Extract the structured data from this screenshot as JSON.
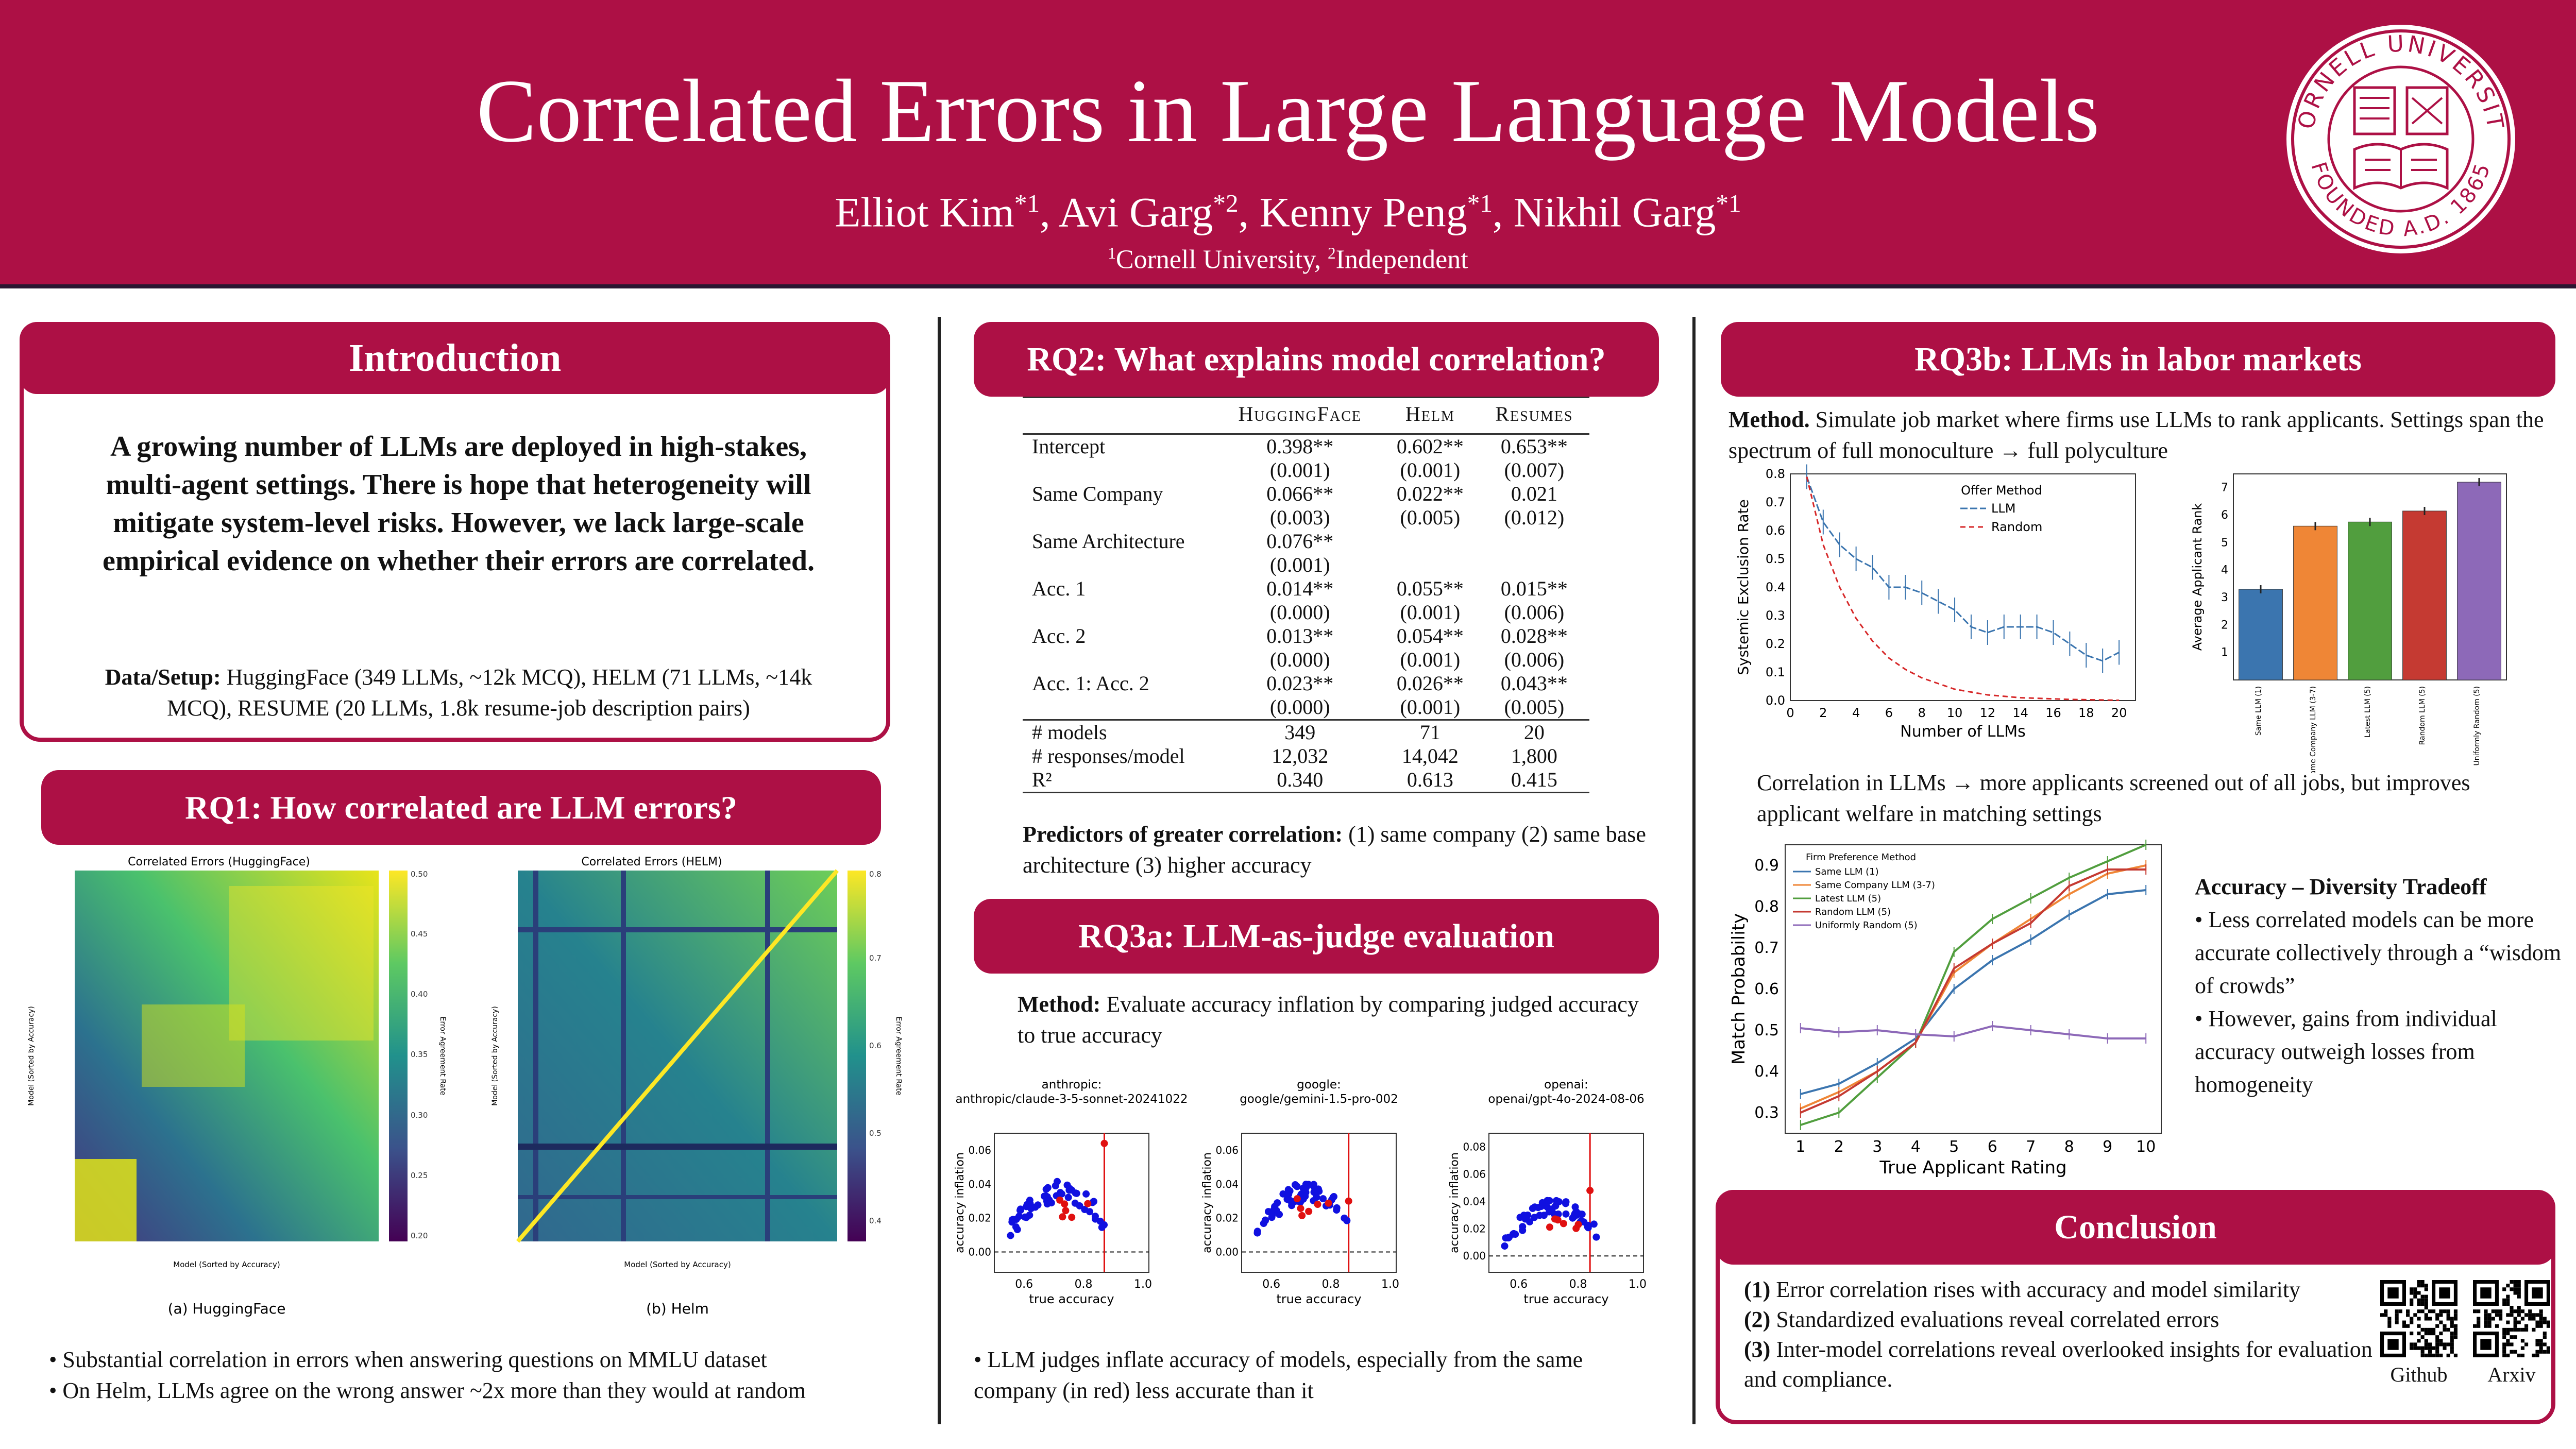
{
  "header": {
    "title": "Correlated Errors in Large Language Models",
    "authors": [
      {
        "name": "Elliot Kim",
        "sup": "*1"
      },
      {
        "name": "Avi Garg",
        "sup": "*2"
      },
      {
        "name": "Kenny Peng",
        "sup": "*1"
      },
      {
        "name": "Nikhil Garg",
        "sup": "*1"
      }
    ],
    "affiliations": [
      {
        "sup": "1",
        "name": "Cornell University"
      },
      {
        "sup": "2",
        "name": "Independent"
      }
    ],
    "seal_text_top": "CORNELL UNIVERSITY",
    "seal_text_bottom": "FOUNDED A.D. 1865"
  },
  "intro": {
    "heading": "Introduction",
    "body": "A growing number of LLMs are deployed in high-stakes, multi-agent settings. There is hope that heterogeneity will mitigate system-level risks. However, we lack large-scale empirical evidence on whether their errors are correlated.",
    "data_label": "Data/Setup:",
    "data_text": "HuggingFace (349 LLMs, ~12k MCQ), HELM (71 LLMs, ~14k MCQ), RESUME (20 LLMs, 1.8k resume-job description pairs)"
  },
  "rq1": {
    "heading": "RQ1: How correlated are LLM errors?",
    "heatmaps": [
      {
        "title": "Correlated Errors (HuggingFace)",
        "caption": "(a) HuggingFace",
        "xlabel": "Model (Sorted by Accuracy)",
        "ylabel": "Model (Sorted by Accuracy)",
        "cbar_label": "Error Agreement Rate",
        "cbar_ticks": [
          "0.50",
          "0.45",
          "0.40",
          "0.35",
          "0.30",
          "0.25",
          "0.20"
        ]
      },
      {
        "title": "Correlated Errors (HELM)",
        "caption": "(b) Helm",
        "xlabel": "Model (Sorted by Accuracy)",
        "ylabel": "Model (Sorted by Accuracy)",
        "cbar_label": "Error Agreement Rate",
        "cbar_ticks": [
          "0.8",
          "0.7",
          "0.6",
          "0.5",
          "0.4"
        ]
      }
    ],
    "bullets": [
      "Substantial correlation in errors when answering questions on MMLU dataset",
      "On Helm, LLMs agree on the wrong answer ~2x more than they would at random"
    ]
  },
  "rq2": {
    "heading": "RQ2: What explains model correlation?",
    "columns": [
      "HuggingFace",
      "Helm",
      "Resumes"
    ],
    "rows": [
      {
        "label": "Intercept",
        "vals": [
          "0.398**",
          "0.602**",
          "0.653**"
        ],
        "se": [
          "(0.001)",
          "(0.001)",
          "(0.007)"
        ]
      },
      {
        "label": "Same Company",
        "vals": [
          "0.066**",
          "0.022**",
          "0.021"
        ],
        "se": [
          "(0.003)",
          "(0.005)",
          "(0.012)"
        ]
      },
      {
        "label": "Same Architecture",
        "vals": [
          "0.076**",
          "",
          ""
        ],
        "se": [
          "(0.001)",
          "",
          ""
        ]
      },
      {
        "label": "Acc. 1",
        "vals": [
          "0.014**",
          "0.055**",
          "0.015**"
        ],
        "se": [
          "(0.000)",
          "(0.001)",
          "(0.006)"
        ]
      },
      {
        "label": "Acc. 2",
        "vals": [
          "0.013**",
          "0.054**",
          "0.028**"
        ],
        "se": [
          "(0.000)",
          "(0.001)",
          "(0.006)"
        ]
      },
      {
        "label": "Acc. 1: Acc. 2",
        "vals": [
          "0.023**",
          "0.026**",
          "0.043**"
        ],
        "se": [
          "(0.000)",
          "(0.001)",
          "(0.005)"
        ]
      }
    ],
    "stats": [
      {
        "label": "# models",
        "vals": [
          "349",
          "71",
          "20"
        ]
      },
      {
        "label": "# responses/model",
        "vals": [
          "12,032",
          "14,042",
          "1,800"
        ]
      },
      {
        "label": "R²",
        "vals": [
          "0.340",
          "0.613",
          "0.415"
        ]
      }
    ],
    "predictors_label": "Predictors of greater correlation:",
    "predictors_text": "(1) same company (2) same base architecture (3) higher accuracy"
  },
  "rq3a": {
    "heading": "RQ3a: LLM-as-judge evaluation",
    "method_label": "Method:",
    "method_text": "Evaluate accuracy inflation by comparing judged accuracy to true accuracy",
    "panels": [
      {
        "title1": "anthropic:",
        "title2": "anthropic/claude-3-5-sonnet-20241022",
        "vline": 0.87
      },
      {
        "title1": "google:",
        "title2": "google/gemini-1.5-pro-002",
        "vline": 0.86
      },
      {
        "title1": "openai:",
        "title2": "openai/gpt-4o-2024-08-06",
        "vline": 0.84
      }
    ],
    "xlabel": "true accuracy",
    "ylabel": "accuracy inflation",
    "xticks": [
      "0.6",
      "0.8",
      "1.0"
    ],
    "yticks": [
      "0.06",
      "0.04",
      "0.02",
      "0.00"
    ],
    "yticks_openai": [
      "0.08",
      "0.06",
      "0.04",
      "0.02",
      "0.00"
    ],
    "bullet": "LLM judges inflate accuracy of models, especially from the same company (in red) less accurate than it"
  },
  "rq3b": {
    "heading": "RQ3b: LLMs in labor markets",
    "method_label": "Method.",
    "method_text": "Simulate job market where firms use LLMs to rank applicants. Settings span the spectrum of full monoculture → full polyculture",
    "finding": "Correlation in LLMs → more applicants screened out of all jobs, but improves applicant welfare in matching settings",
    "tradeoff_title": "Accuracy – Diversity Tradeoff",
    "tradeoff_bullets": [
      "Less correlated models can be more accurate collectively through a “wisdom of crowds”",
      "However, gains from individual accuracy outweigh losses from homogeneity"
    ]
  },
  "chart_data": [
    {
      "type": "line",
      "xlabel": "Number of LLMs",
      "ylabel": "Systemic Exclusion Rate",
      "legend_title": "Offer Method",
      "legend_placement": "top-right",
      "xlim": [
        0,
        21
      ],
      "ylim": [
        0,
        0.8
      ],
      "xticks": [
        0,
        2,
        4,
        6,
        8,
        10,
        12,
        14,
        16,
        18,
        20
      ],
      "yticks": [
        0.0,
        0.1,
        0.2,
        0.3,
        0.4,
        0.5,
        0.6,
        0.7,
        0.8
      ],
      "x": [
        1,
        2,
        3,
        4,
        5,
        6,
        7,
        8,
        9,
        10,
        11,
        12,
        13,
        14,
        15,
        16,
        17,
        18,
        19,
        20
      ],
      "series": [
        {
          "name": "LLM",
          "values": [
            0.79,
            0.63,
            0.55,
            0.5,
            0.47,
            0.4,
            0.4,
            0.38,
            0.35,
            0.32,
            0.26,
            0.24,
            0.26,
            0.26,
            0.26,
            0.24,
            0.2,
            0.16,
            0.14,
            0.17
          ]
        },
        {
          "name": "Random",
          "values": [
            0.79,
            0.55,
            0.4,
            0.29,
            0.21,
            0.15,
            0.11,
            0.08,
            0.06,
            0.04,
            0.03,
            0.02,
            0.015,
            0.01,
            0.008,
            0.006,
            0.004,
            0.003,
            0.002,
            0.001
          ]
        }
      ]
    },
    {
      "type": "bar",
      "ylabel": "Average Applicant Rank",
      "ylim": [
        0,
        7.5
      ],
      "yticks": [
        1,
        2,
        3,
        4,
        5,
        6,
        7
      ],
      "categories": [
        "Same LLM (1)",
        "Same Company LLM (3-7)",
        "Latest LLM (5)",
        "Random LLM (5)",
        "Uniformly Random (5)"
      ],
      "values": [
        3.3,
        5.6,
        5.75,
        6.15,
        7.2
      ],
      "colors": [
        "#3b75af",
        "#ef8636",
        "#519e3e",
        "#c53a32",
        "#8d69b8"
      ]
    },
    {
      "type": "line",
      "xlabel": "True Applicant Rating",
      "ylabel": "Match Probability",
      "legend_title": "Firm Preference Method",
      "legend_placement": "top-left",
      "xlim": [
        0.6,
        10.4
      ],
      "ylim": [
        0.25,
        0.95
      ],
      "xticks": [
        1,
        2,
        3,
        4,
        5,
        6,
        7,
        8,
        9,
        10
      ],
      "yticks": [
        0.3,
        0.4,
        0.5,
        0.6,
        0.7,
        0.8,
        0.9
      ],
      "x": [
        1,
        2,
        3,
        4,
        5,
        6,
        7,
        8,
        9,
        10
      ],
      "series": [
        {
          "name": "Same LLM (1)",
          "values": [
            0.345,
            0.37,
            0.42,
            0.48,
            0.6,
            0.67,
            0.72,
            0.78,
            0.83,
            0.84
          ],
          "color": "#3b75af"
        },
        {
          "name": "Same Company LLM (3-7)",
          "values": [
            0.31,
            0.35,
            0.4,
            0.47,
            0.64,
            0.71,
            0.77,
            0.83,
            0.88,
            0.9
          ],
          "color": "#ef8636"
        },
        {
          "name": "Latest LLM (5)",
          "values": [
            0.27,
            0.3,
            0.385,
            0.47,
            0.69,
            0.77,
            0.82,
            0.87,
            0.91,
            0.95
          ],
          "color": "#519e3e"
        },
        {
          "name": "Random LLM (5)",
          "values": [
            0.3,
            0.34,
            0.4,
            0.47,
            0.65,
            0.71,
            0.76,
            0.85,
            0.89,
            0.89
          ],
          "color": "#c53a32"
        },
        {
          "name": "Uniformly Random (5)",
          "values": [
            0.505,
            0.495,
            0.5,
            0.49,
            0.485,
            0.51,
            0.5,
            0.49,
            0.48,
            0.48
          ],
          "color": "#8d69b8"
        }
      ]
    }
  ],
  "conclusion": {
    "heading": "Conclusion",
    "items": [
      {
        "num": "(1)",
        "text": "Error correlation rises with accuracy and model similarity"
      },
      {
        "num": "(2)",
        "text": "Standardized evaluations reveal correlated errors"
      },
      {
        "num": "(3)",
        "text": "Inter-model correlations reveal overlooked insights for evaluation and compliance."
      }
    ],
    "qr_labels": [
      "Github",
      "Arxiv"
    ]
  },
  "colors": {
    "brand": "#ad1045",
    "dark": "#2a1530"
  }
}
